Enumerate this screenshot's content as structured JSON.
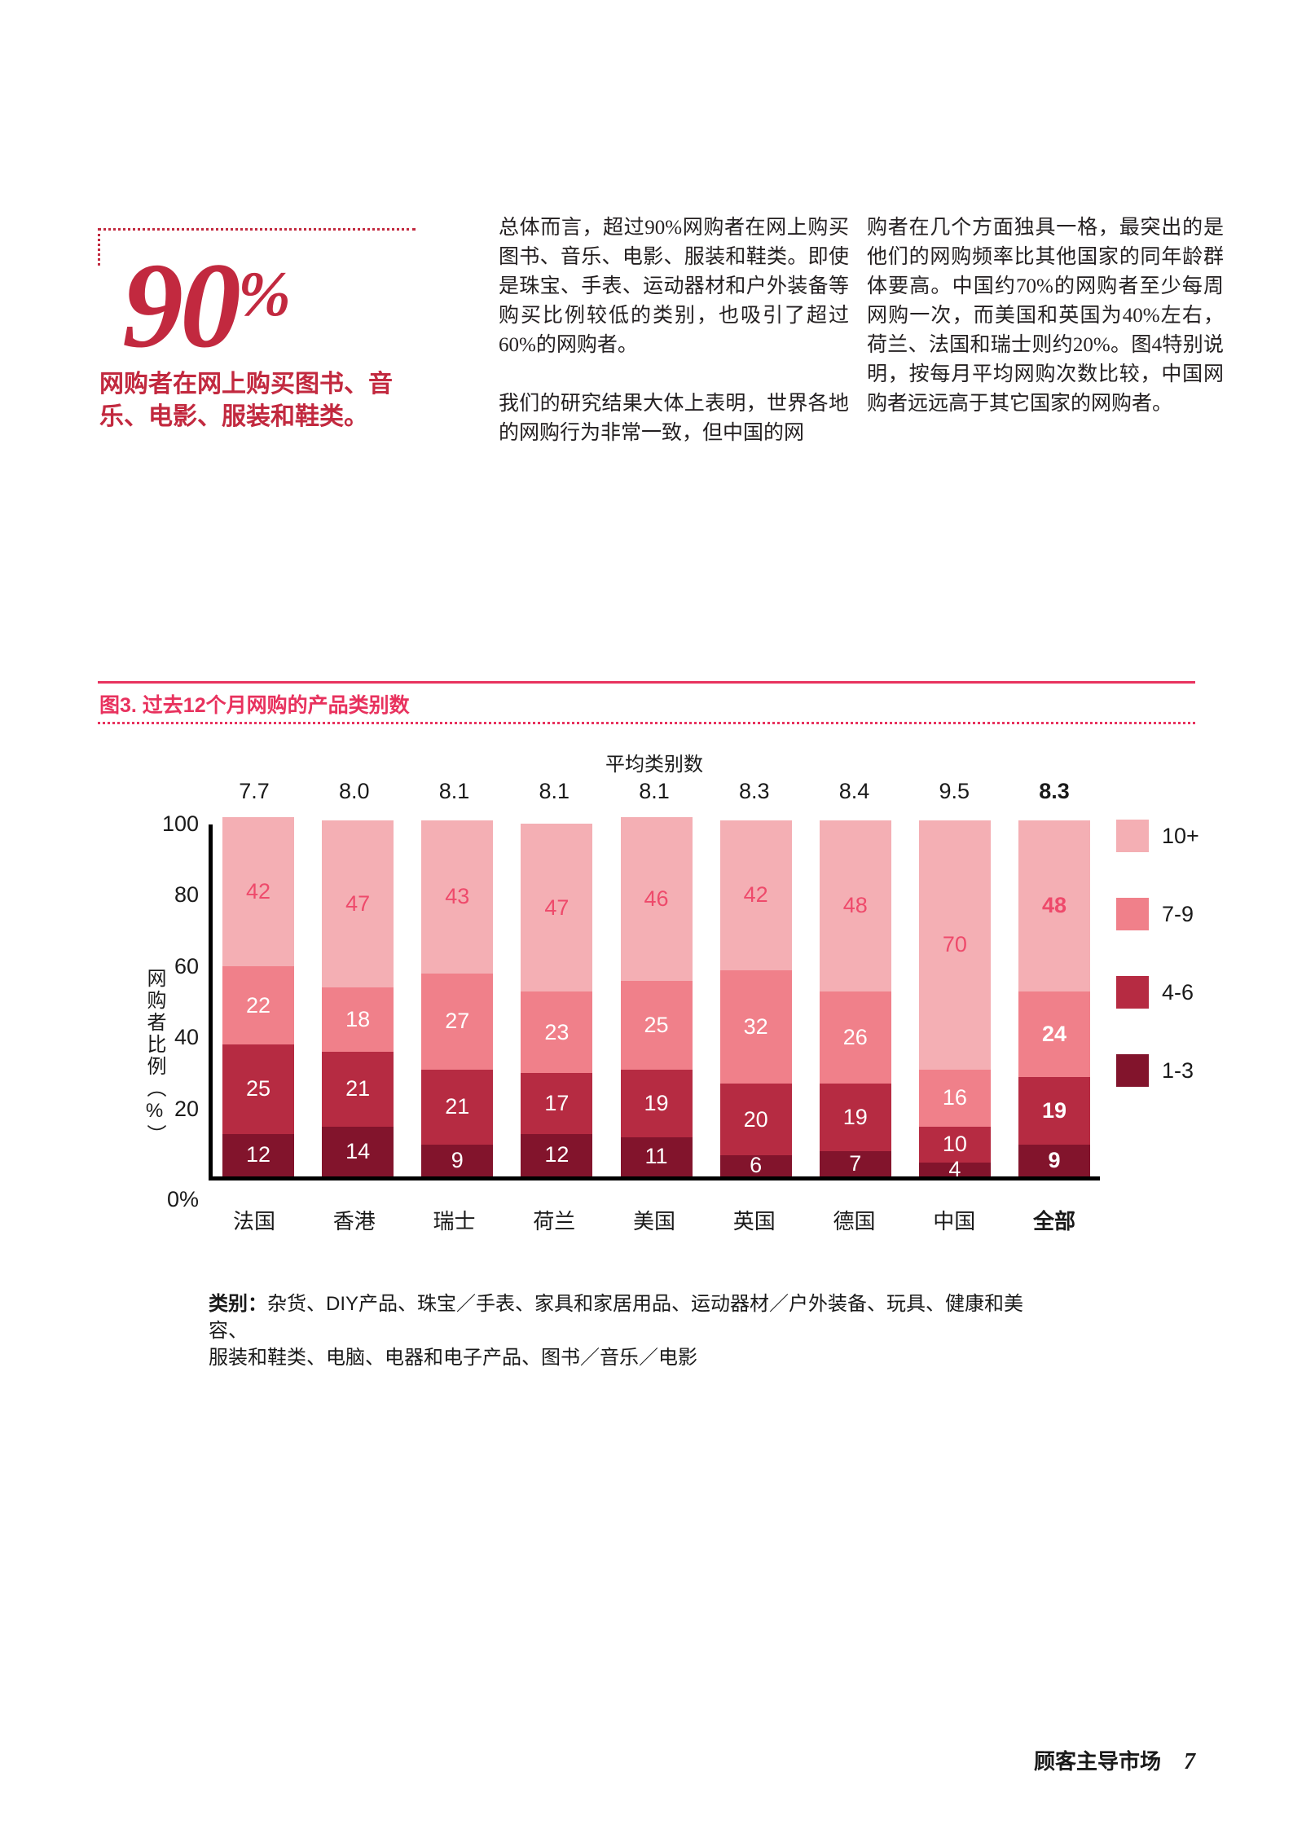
{
  "stat": {
    "value": "90",
    "percent_sign": "%",
    "caption": "网购者在网上购买图书、音乐、电影、服装和鞋类。",
    "accent_color": "#c2293f"
  },
  "columns": {
    "mid": [
      "总体而言，超过90%网购者在网上购买图书、音乐、电影、服装和鞋类。即使是珠宝、手表、运动器材和户外装备等购买比例较低的类别，也吸引了超过60%的网购者。",
      "我们的研究结果大体上表明，世界各地的网购行为非常一致，但中国的网"
    ],
    "right": [
      "购者在几个方面独具一格，最突出的是他们的网购频率比其他国家的同年龄群体要高。中国约70%的网购者至少每周网购一次，而美国和英国为40%左右，荷兰、法国和瑞士则约20%。图4特别说明，按每月平均网购次数比较，中国网购者远远高于其它国家的网购者。"
    ]
  },
  "figure": {
    "title": "图3. 过去12个月网购的产品类别数",
    "accent_color": "#e8325e",
    "avg_header": "平均类别数",
    "footnote_label": "类别：",
    "footnote_line1": "杂货、DIY产品、珠宝／手表、家具和家居用品、运动器材／户外装备、玩具、健康和美容、",
    "footnote_line2": "服装和鞋类、电脑、电器和电子产品、图书／音乐／电影"
  },
  "chart_data": {
    "type": "bar",
    "stacked": true,
    "title": "图3. 过去12个月网购的产品类别数",
    "categories": [
      "法国",
      "香港",
      "瑞士",
      "荷兰",
      "美国",
      "英国",
      "德国",
      "中国",
      "全部"
    ],
    "averages": [
      "7.7",
      "8.0",
      "8.1",
      "8.1",
      "8.1",
      "8.3",
      "8.4",
      "9.5",
      "8.3"
    ],
    "series": [
      {
        "name": "1-3",
        "color": "#82142c",
        "values": [
          12,
          14,
          9,
          12,
          11,
          6,
          7,
          4,
          9
        ]
      },
      {
        "name": "4-6",
        "color": "#b62b42",
        "values": [
          25,
          21,
          21,
          17,
          19,
          20,
          19,
          10,
          19
        ]
      },
      {
        "name": "7-9",
        "color": "#f0808a",
        "values": [
          22,
          18,
          27,
          23,
          25,
          32,
          26,
          16,
          24
        ]
      },
      {
        "name": "10+",
        "color": "#f4afb4",
        "values": [
          42,
          47,
          43,
          47,
          46,
          42,
          48,
          70,
          48
        ]
      }
    ],
    "legend": [
      "10+",
      "7-9",
      "4-6",
      "1-3"
    ],
    "ylabel": "网购者比例（%）",
    "yticks": [
      "100",
      "80",
      "60",
      "40",
      "20",
      "0%"
    ],
    "ylim": [
      0,
      100
    ],
    "value_label_colors": {
      "top_segment": "#ee4a6b",
      "other_segments": "#ffffff"
    },
    "highlighted_category": "全部"
  },
  "footer": {
    "title": "顾客主导市场",
    "page_number": "7"
  }
}
